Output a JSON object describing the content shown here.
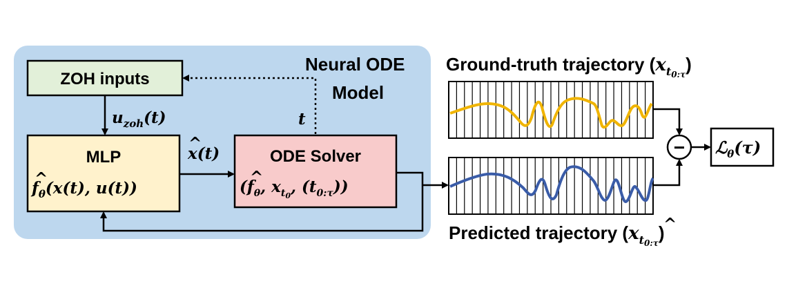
{
  "panel": {
    "label_line1": "Neural ODE",
    "label_line2": "Model"
  },
  "zoh_box": {
    "label": "ZOH inputs"
  },
  "mlp_box": {
    "label": "MLP",
    "formula_f": "f",
    "formula_sub": "θ",
    "formula_rest": "(x(t), u(t))"
  },
  "ode_box": {
    "label": "ODE Solver",
    "formula_open": "(",
    "formula_f": "f",
    "formula_sub": "θ",
    "formula_mid": ", x",
    "formula_sub2": "t",
    "formula_sub2b": "0",
    "formula_rest": ", (t",
    "formula_sub3": "0:τ",
    "formula_close": "))"
  },
  "signals": {
    "u_main": "u",
    "u_sub": "zoh",
    "u_rest": "(t)",
    "xdot": "x",
    "xdot_rest": "(t)",
    "t": "t"
  },
  "ground_truth": {
    "label": "Ground-truth trajectory (",
    "var": "x",
    "sub": "t",
    "sub2": "0:τ",
    "close": ")"
  },
  "predicted": {
    "label": "Predicted trajectory (",
    "var": "x",
    "sub": "t",
    "sub2": "0:τ",
    "close": ")"
  },
  "loss": {
    "symbol": "ℒ",
    "sub": "θ",
    "rest": "(τ)"
  },
  "minus_symbol": "−",
  "colors": {
    "panel": "#bdd7ee",
    "zoh": "#e2f0d9",
    "mlp": "#fff2cc",
    "ode": "#f8cbcb",
    "gt_line": "#f0b400",
    "pred_line": "#3a5ca8"
  }
}
